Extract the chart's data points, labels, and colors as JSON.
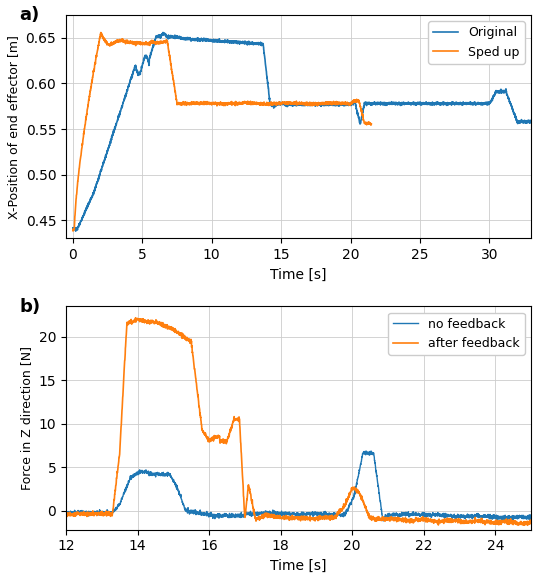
{
  "blue_color": "#1f77b4",
  "orange_color": "#ff7f0e",
  "panel_a": {
    "title": "a)",
    "xlabel": "Time [s]",
    "ylabel": "X-Position of end effector [m]",
    "xlim": [
      -0.5,
      33
    ],
    "ylim": [
      0.43,
      0.675
    ],
    "yticks": [
      0.45,
      0.5,
      0.55,
      0.6,
      0.65
    ],
    "xticks": [
      0,
      5,
      10,
      15,
      20,
      25,
      30
    ],
    "legend": [
      "Original",
      "Sped up"
    ]
  },
  "panel_b": {
    "title": "b)",
    "xlabel": "Time [s]",
    "ylabel": "Force in Z direction [N]",
    "xlim": [
      12,
      25
    ],
    "ylim": [
      -2.2,
      23.5
    ],
    "yticks": [
      0,
      5,
      10,
      15,
      20
    ],
    "xticks": [
      12,
      14,
      16,
      18,
      20,
      22,
      24
    ],
    "legend": [
      "no feedback",
      "after feedback"
    ]
  }
}
